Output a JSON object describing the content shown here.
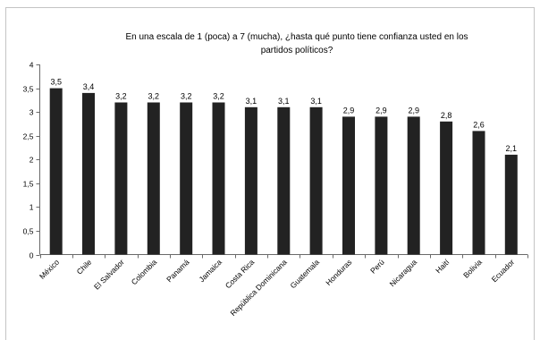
{
  "chart_data": {
    "type": "bar",
    "title": [
      "En una escala de 1 (poca) a 7 (mucha), ¿hasta qué punto tiene confianza usted en los",
      "partidos políticos?"
    ],
    "xlabel": "",
    "ylabel": "",
    "categories": [
      "México",
      "Chile",
      "El Salvador",
      "Colombia",
      "Panamá",
      "Jamaica",
      "Costa Rica",
      "República Dominicana",
      "Guatemala",
      "Honduras",
      "Perú",
      "Nicaragua",
      "Haití",
      "Bolivia",
      "Ecuador"
    ],
    "values": [
      3.5,
      3.4,
      3.2,
      3.2,
      3.2,
      3.2,
      3.1,
      3.1,
      3.1,
      2.9,
      2.9,
      2.9,
      2.8,
      2.6,
      2.1
    ],
    "data_labels": [
      "3,5",
      "3,4",
      "3,2",
      "3,2",
      "3,2",
      "3,2",
      "3,1",
      "3,1",
      "3,1",
      "2,9",
      "2,9",
      "2,9",
      "2,8",
      "2,6",
      "2,1"
    ],
    "ylim": [
      0,
      4
    ],
    "yticks": [
      0,
      0.5,
      1,
      1.5,
      2,
      2.5,
      3,
      3.5,
      4
    ],
    "ytick_labels": [
      "0",
      "0,5",
      "1",
      "1,5",
      "2",
      "2,5",
      "3",
      "3,5",
      "4"
    ],
    "grid": false,
    "legend": "none",
    "bar_color": "#222222"
  }
}
